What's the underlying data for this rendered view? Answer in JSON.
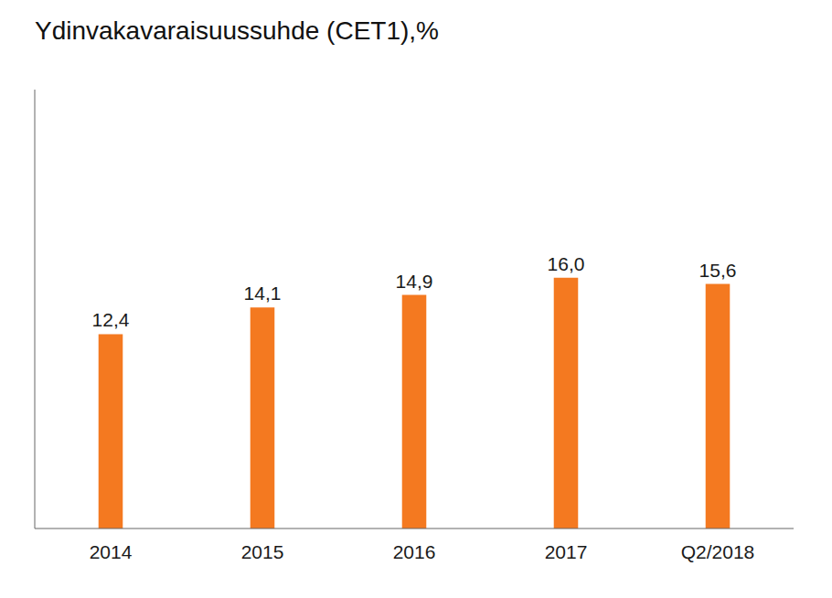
{
  "chart_data": {
    "type": "bar",
    "title": "Ydinvakavaraisuussuhde (CET1),%",
    "categories": [
      "2014",
      "2015",
      "2016",
      "2017",
      "Q2/2018"
    ],
    "values": [
      12.4,
      14.1,
      14.9,
      16.0,
      15.6
    ],
    "value_labels": [
      "12,4",
      "14,1",
      "14,9",
      "16,0",
      "15,6"
    ],
    "data_labels": true,
    "color": "#F47920",
    "ylim": [
      0,
      28
    ],
    "grid": false,
    "tick_labels": "x"
  }
}
